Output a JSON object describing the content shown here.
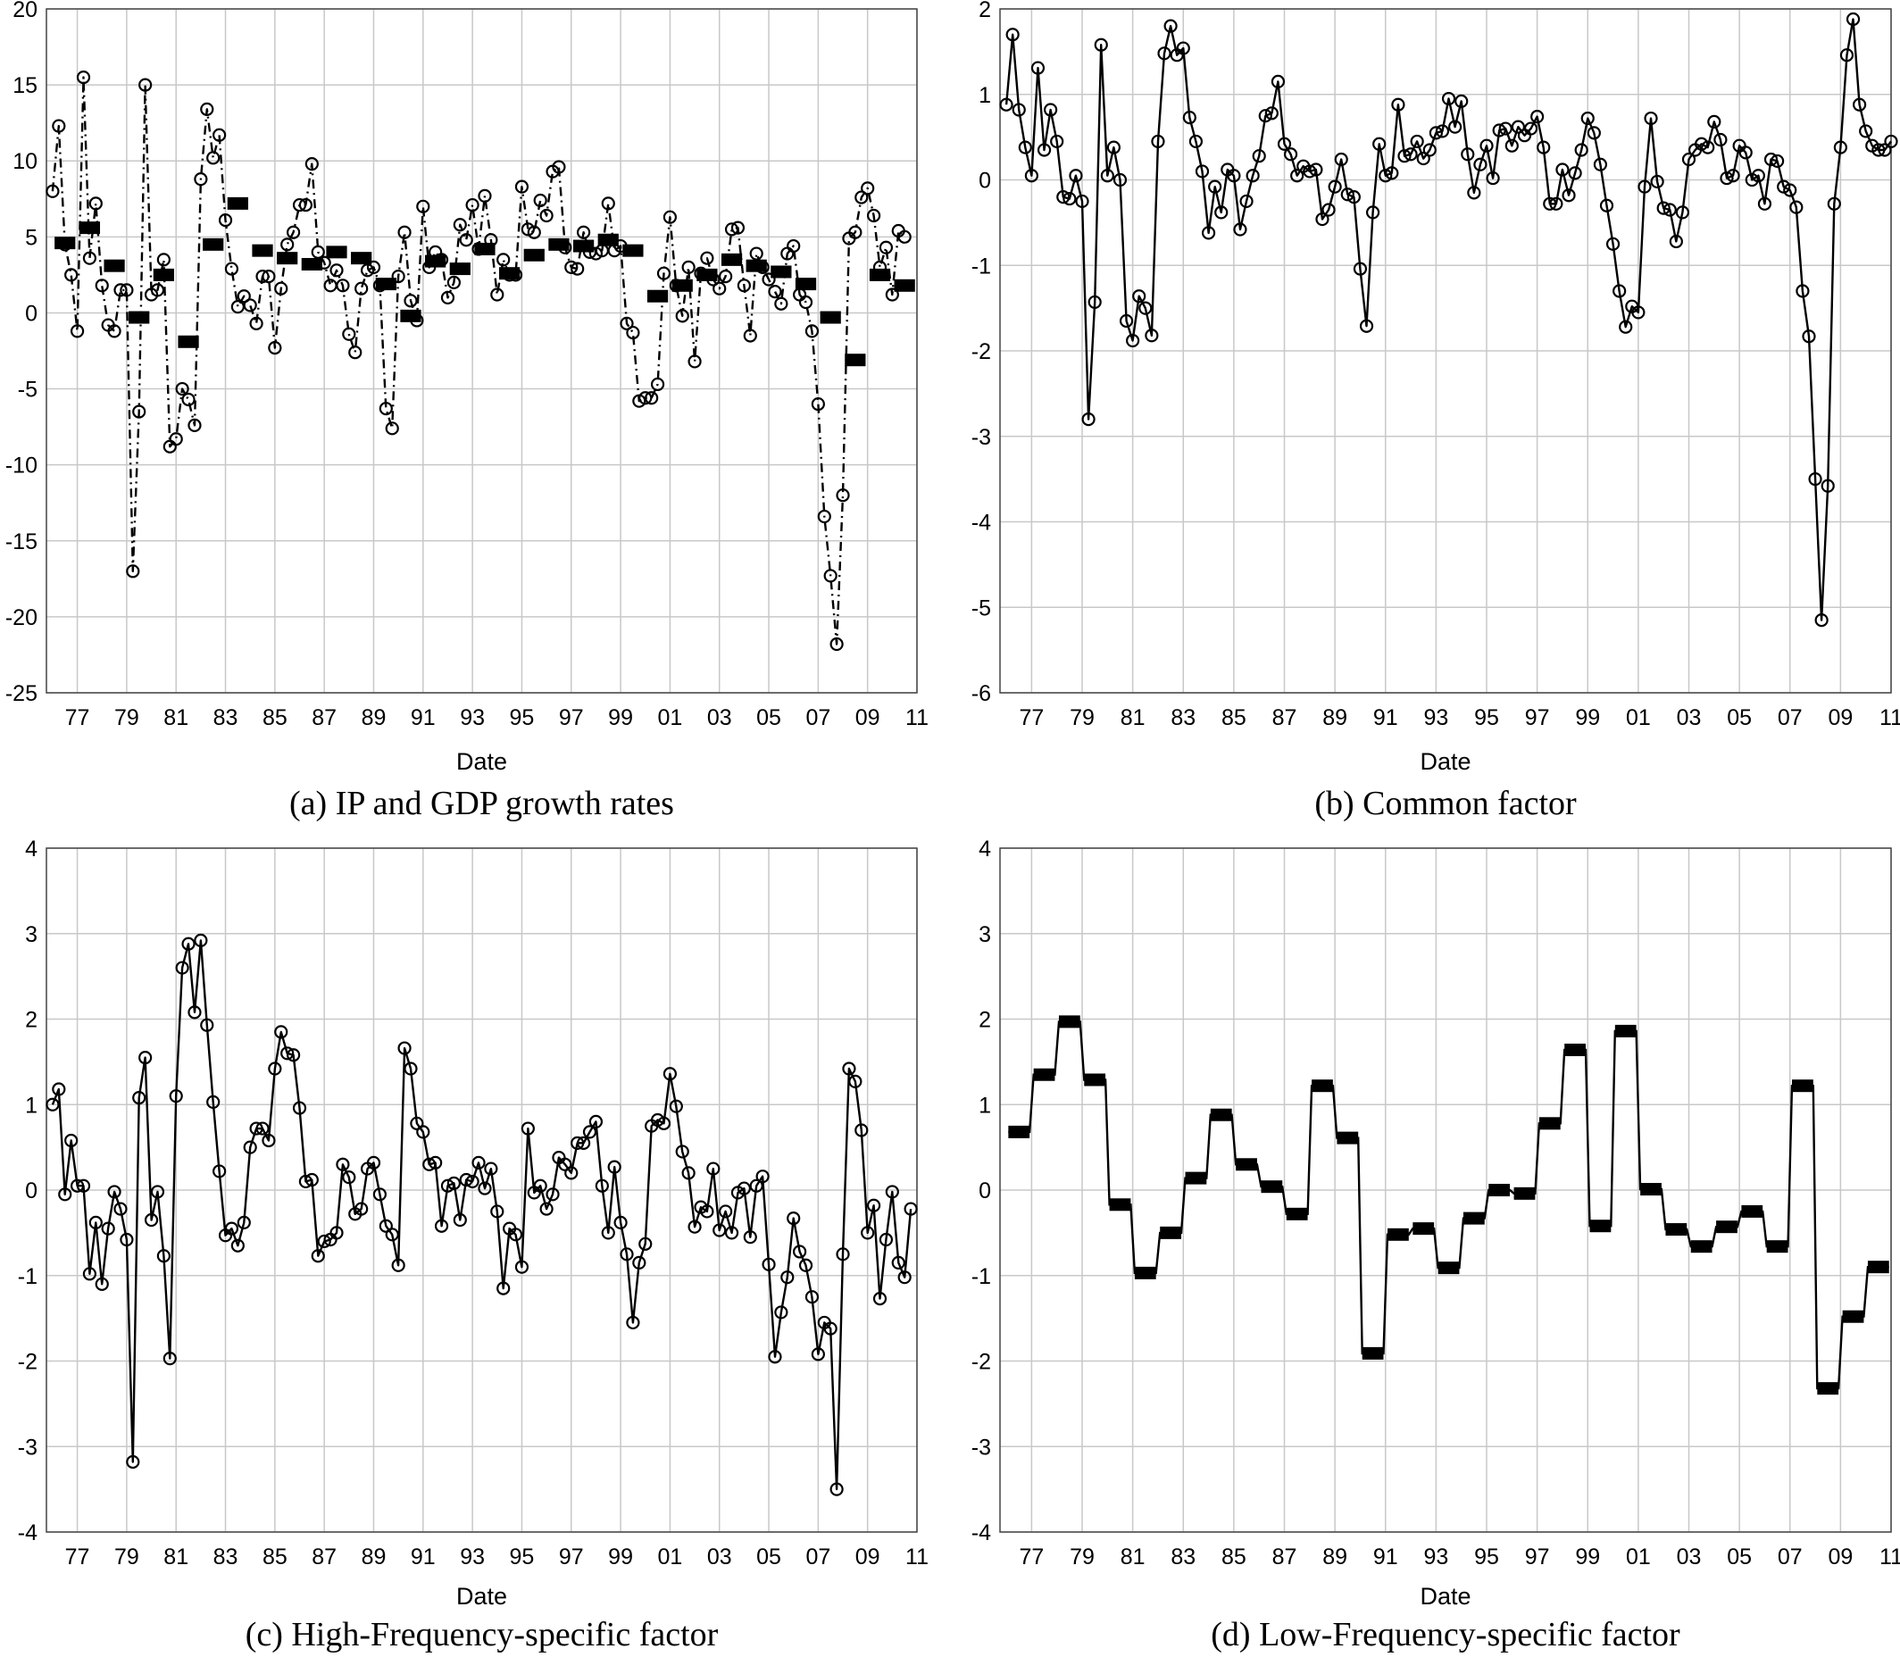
{
  "chart_data": [
    {
      "id": "a",
      "type": "line",
      "caption": "(a) IP and GDP growth rates",
      "xlabel": "Date",
      "ylabel": "",
      "x_tick_labels": [
        "77",
        "79",
        "81",
        "83",
        "85",
        "87",
        "89",
        "91",
        "93",
        "95",
        "97",
        "99",
        "01",
        "03",
        "05",
        "07",
        "09",
        "11"
      ],
      "x_tick_years": [
        1977,
        1979,
        1981,
        1983,
        1985,
        1987,
        1989,
        1991,
        1993,
        1995,
        1997,
        1999,
        2001,
        2003,
        2005,
        2007,
        2009,
        2011
      ],
      "xlim": [
        1975.75,
        2011.0
      ],
      "ylim": [
        -25,
        20
      ],
      "y_ticks": [
        -25,
        -20,
        -15,
        -10,
        -5,
        0,
        5,
        10,
        15,
        20
      ],
      "grid": true,
      "series": [
        {
          "style": "dashdot-circles",
          "x_start": 1976.0,
          "x_step": 0.25,
          "values": [
            8.0,
            12.3,
            4.5,
            2.5,
            -1.2,
            15.5,
            3.6,
            7.2,
            1.8,
            -0.8,
            -1.2,
            1.5,
            1.5,
            -17.0,
            -6.5,
            15.0,
            1.2,
            1.5,
            3.5,
            -8.8,
            -8.3,
            -5.0,
            -5.7,
            -7.4,
            8.8,
            13.4,
            10.2,
            11.7,
            6.1,
            2.9,
            0.4,
            1.1,
            0.5,
            -0.7,
            2.4,
            2.4,
            -2.3,
            1.6,
            4.5,
            5.3,
            7.1,
            7.1,
            9.8,
            4.0,
            3.3,
            1.8,
            2.8,
            1.8,
            -1.4,
            -2.6,
            1.6,
            2.8,
            3.0,
            1.8,
            -6.3,
            -7.6,
            2.4,
            5.3,
            0.8,
            -0.5,
            7.0,
            3.0,
            4.0,
            3.5,
            1.0,
            2.0,
            5.8,
            4.8,
            7.1,
            4.2,
            7.7,
            4.8,
            1.2,
            3.5,
            2.5,
            2.5,
            8.3,
            5.5,
            5.3,
            7.4,
            6.4,
            9.3,
            9.6,
            4.3,
            3.0,
            2.9,
            5.3,
            4.0,
            3.9,
            4.1,
            7.2,
            4.1,
            4.4,
            -0.7,
            -1.3,
            -5.8,
            -5.6,
            -5.6,
            -4.7,
            2.6,
            6.3,
            1.8,
            -0.2,
            3.0,
            -3.2,
            2.6,
            3.6,
            2.2,
            1.6,
            2.4,
            5.5,
            5.6,
            1.8,
            -1.5,
            3.9,
            3.0,
            2.2,
            1.4,
            0.6,
            3.9,
            4.4,
            1.2,
            0.7,
            -1.2,
            -6.0,
            -13.4,
            -17.3,
            -21.8,
            -12.0,
            4.9,
            5.3,
            7.6,
            8.2,
            6.4,
            3.0,
            4.3,
            1.2,
            5.4,
            5.0
          ]
        },
        {
          "style": "step-blocks",
          "x_start": 1976.0,
          "x_step": 1.0,
          "values": [
            4.6,
            5.6,
            3.1,
            -0.3,
            2.5,
            -1.9,
            4.5,
            7.2,
            4.1,
            3.6,
            3.2,
            4.0,
            3.6,
            1.9,
            -0.2,
            3.4,
            2.9,
            4.2,
            2.6,
            3.8,
            4.5,
            4.4,
            4.8,
            4.1,
            1.1,
            1.8,
            2.5,
            3.5,
            3.1,
            2.7,
            1.9,
            -0.3,
            -3.1,
            2.5,
            1.8
          ]
        }
      ]
    },
    {
      "id": "b",
      "type": "line",
      "caption": "(b) Common factor",
      "xlabel": "Date",
      "ylabel": "",
      "x_tick_labels": [
        "77",
        "79",
        "81",
        "83",
        "85",
        "87",
        "89",
        "91",
        "93",
        "95",
        "97",
        "99",
        "01",
        "03",
        "05",
        "07",
        "09",
        "11"
      ],
      "x_tick_years": [
        1977,
        1979,
        1981,
        1983,
        1985,
        1987,
        1989,
        1991,
        1993,
        1995,
        1997,
        1999,
        2001,
        2003,
        2005,
        2007,
        2009,
        2011
      ],
      "xlim": [
        1975.75,
        2011.0
      ],
      "ylim": [
        -6,
        2
      ],
      "y_ticks": [
        -6,
        -5,
        -4,
        -3,
        -2,
        -1,
        0,
        1,
        2
      ],
      "grid": true,
      "series": [
        {
          "style": "solid-circles",
          "x_start": 1976.0,
          "x_step": 0.25,
          "values": [
            0.88,
            1.7,
            0.82,
            0.38,
            0.05,
            1.31,
            0.35,
            0.82,
            0.45,
            -0.2,
            -0.22,
            0.05,
            -0.25,
            -2.8,
            -1.43,
            1.58,
            0.05,
            0.38,
            0.0,
            -1.65,
            -1.88,
            -1.36,
            -1.5,
            -1.82,
            0.45,
            1.48,
            1.8,
            1.46,
            1.54,
            0.73,
            0.45,
            0.1,
            -0.62,
            -0.08,
            -0.38,
            0.12,
            0.05,
            -0.58,
            -0.25,
            0.05,
            0.28,
            0.75,
            0.78,
            1.15,
            0.42,
            0.3,
            0.05,
            0.16,
            0.1,
            0.12,
            -0.46,
            -0.35,
            -0.08,
            0.24,
            -0.17,
            -0.2,
            -1.04,
            -1.71,
            -0.38,
            0.42,
            0.05,
            0.08,
            0.88,
            0.28,
            0.3,
            0.45,
            0.25,
            0.35,
            0.55,
            0.57,
            0.95,
            0.62,
            0.92,
            0.3,
            -0.15,
            0.18,
            0.4,
            0.02,
            0.58,
            0.6,
            0.4,
            0.62,
            0.52,
            0.6,
            0.74,
            0.38,
            -0.28,
            -0.28,
            0.12,
            -0.18,
            0.08,
            0.35,
            0.72,
            0.55,
            0.18,
            -0.3,
            -0.75,
            -1.3,
            -1.72,
            -1.48,
            -1.55,
            -0.08,
            0.72,
            -0.02,
            -0.33,
            -0.35,
            -0.72,
            -0.38,
            0.24,
            0.35,
            0.42,
            0.38,
            0.68,
            0.47,
            0.02,
            0.05,
            0.4,
            0.32,
            0.0,
            0.05,
            -0.28,
            0.24,
            0.22,
            -0.08,
            -0.12,
            -0.32,
            -1.3,
            -1.83,
            -3.5,
            -5.15,
            -3.58,
            -0.28,
            0.38,
            1.46,
            1.88,
            0.88,
            0.57,
            0.4,
            0.35,
            0.35,
            0.45
          ]
        }
      ]
    },
    {
      "id": "c",
      "type": "line",
      "caption": "(c) High-Frequency-specific factor",
      "xlabel": "Date",
      "ylabel": "",
      "x_tick_labels": [
        "77",
        "79",
        "81",
        "83",
        "85",
        "87",
        "89",
        "91",
        "93",
        "95",
        "97",
        "99",
        "01",
        "03",
        "05",
        "07",
        "09",
        "11"
      ],
      "x_tick_years": [
        1977,
        1979,
        1981,
        1983,
        1985,
        1987,
        1989,
        1991,
        1993,
        1995,
        1997,
        1999,
        2001,
        2003,
        2005,
        2007,
        2009,
        2011
      ],
      "xlim": [
        1975.75,
        2011.0
      ],
      "ylim": [
        -4,
        4
      ],
      "y_ticks": [
        -4,
        -3,
        -2,
        -1,
        0,
        1,
        2,
        3,
        4
      ],
      "grid": true,
      "series": [
        {
          "style": "solid-circles",
          "x_start": 1976.0,
          "x_step": 0.25,
          "values": [
            1.0,
            1.18,
            -0.05,
            0.58,
            0.05,
            0.05,
            -0.98,
            -0.38,
            -1.1,
            -0.45,
            -0.02,
            -0.22,
            -0.58,
            -3.18,
            1.08,
            1.55,
            -0.35,
            -0.02,
            -0.77,
            -1.97,
            1.1,
            2.6,
            2.88,
            2.08,
            2.92,
            1.93,
            1.03,
            0.22,
            -0.53,
            -0.45,
            -0.65,
            -0.38,
            0.5,
            0.72,
            0.72,
            0.58,
            1.42,
            1.85,
            1.6,
            1.58,
            0.96,
            0.1,
            0.12,
            -0.77,
            -0.6,
            -0.58,
            -0.5,
            0.3,
            0.15,
            -0.28,
            -0.22,
            0.25,
            0.32,
            -0.05,
            -0.42,
            -0.52,
            -0.88,
            1.66,
            1.42,
            0.78,
            0.68,
            0.3,
            0.32,
            -0.42,
            0.05,
            0.08,
            -0.35,
            0.12,
            0.1,
            0.32,
            0.02,
            0.25,
            -0.25,
            -1.15,
            -0.45,
            -0.52,
            -0.9,
            0.72,
            -0.03,
            0.05,
            -0.22,
            -0.05,
            0.38,
            0.3,
            0.2,
            0.55,
            0.55,
            0.68,
            0.8,
            0.05,
            -0.5,
            0.27,
            -0.38,
            -0.75,
            -1.55,
            -0.85,
            -0.63,
            0.75,
            0.82,
            0.78,
            1.36,
            0.98,
            0.45,
            0.2,
            -0.43,
            -0.2,
            -0.25,
            0.25,
            -0.47,
            -0.25,
            -0.5,
            -0.03,
            0.02,
            -0.55,
            0.05,
            0.16,
            -0.87,
            -1.95,
            -1.43,
            -1.02,
            -0.33,
            -0.72,
            -0.88,
            -1.25,
            -1.92,
            -1.55,
            -1.62,
            -3.5,
            -0.75,
            1.42,
            1.27,
            0.7,
            -0.5,
            -0.18,
            -1.27,
            -0.58,
            -0.02,
            -0.85,
            -1.02,
            -0.22
          ]
        }
      ]
    },
    {
      "id": "d",
      "type": "line",
      "caption": "(d) Low-Frequency-specific factor",
      "xlabel": "Date",
      "ylabel": "",
      "x_tick_labels": [
        "77",
        "79",
        "81",
        "83",
        "85",
        "87",
        "89",
        "91",
        "93",
        "95",
        "97",
        "99",
        "01",
        "03",
        "05",
        "07",
        "09",
        "11"
      ],
      "x_tick_years": [
        1977,
        1979,
        1981,
        1983,
        1985,
        1987,
        1989,
        1991,
        1993,
        1995,
        1997,
        1999,
        2001,
        2003,
        2005,
        2007,
        2009,
        2011
      ],
      "xlim": [
        1975.75,
        2011.0
      ],
      "ylim": [
        -4,
        4
      ],
      "y_ticks": [
        -4,
        -3,
        -2,
        -1,
        0,
        1,
        2,
        3,
        4
      ],
      "grid": true,
      "series": [
        {
          "style": "step-blocks-joined",
          "x_start": 1976.0,
          "x_step": 1.0,
          "values": [
            0.68,
            1.35,
            1.97,
            1.29,
            -0.17,
            -0.97,
            -0.5,
            0.14,
            0.88,
            0.3,
            0.04,
            -0.28,
            1.22,
            0.61,
            -1.91,
            -0.52,
            -0.45,
            -0.91,
            -0.33,
            0.0,
            -0.04,
            0.78,
            1.64,
            -0.42,
            1.86,
            0.01,
            -0.46,
            -0.66,
            -0.43,
            -0.25,
            -0.66,
            1.22,
            -2.32,
            -1.48,
            -0.9
          ]
        }
      ]
    }
  ]
}
